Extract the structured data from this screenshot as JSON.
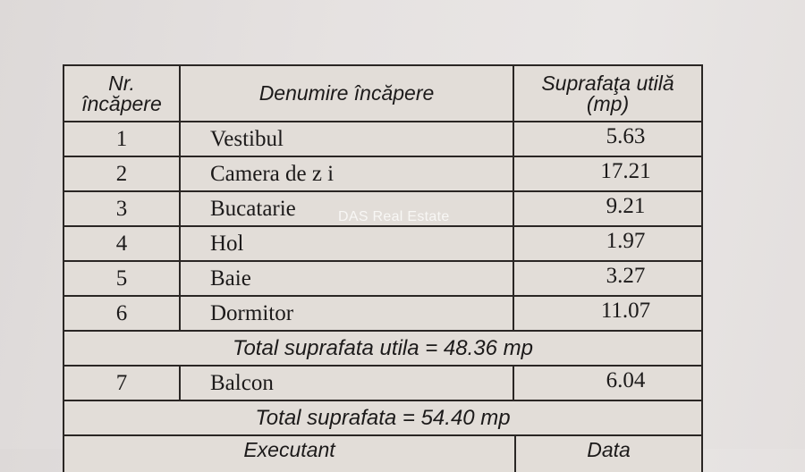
{
  "table": {
    "headers": {
      "nr": [
        "Nr.",
        "încăpere"
      ],
      "name": "Denumire încăpere",
      "area": [
        "Suprafaţa utilă",
        "(mp)"
      ]
    },
    "rows": [
      {
        "nr": "1",
        "name": "Vestibul",
        "area": "5.63"
      },
      {
        "nr": "2",
        "name": "Camera de z i",
        "area": "17.21"
      },
      {
        "nr": "3",
        "name": "Bucatarie",
        "area": "9.21"
      },
      {
        "nr": "4",
        "name": "Hol",
        "area": "1.97"
      },
      {
        "nr": "5",
        "name": "Baie",
        "area": "3.27"
      },
      {
        "nr": "6",
        "name": "Dormitor",
        "area": "11.07"
      }
    ],
    "total_useful": "Total suprafata utila = 48.36 mp",
    "balcony": {
      "nr": "7",
      "name": "Balcon",
      "area": "6.04"
    },
    "total": "Total suprafata = 54.40 mp",
    "footer": {
      "left": "Executant",
      "right": "Data"
    }
  },
  "watermark": "DAS Real Estate"
}
